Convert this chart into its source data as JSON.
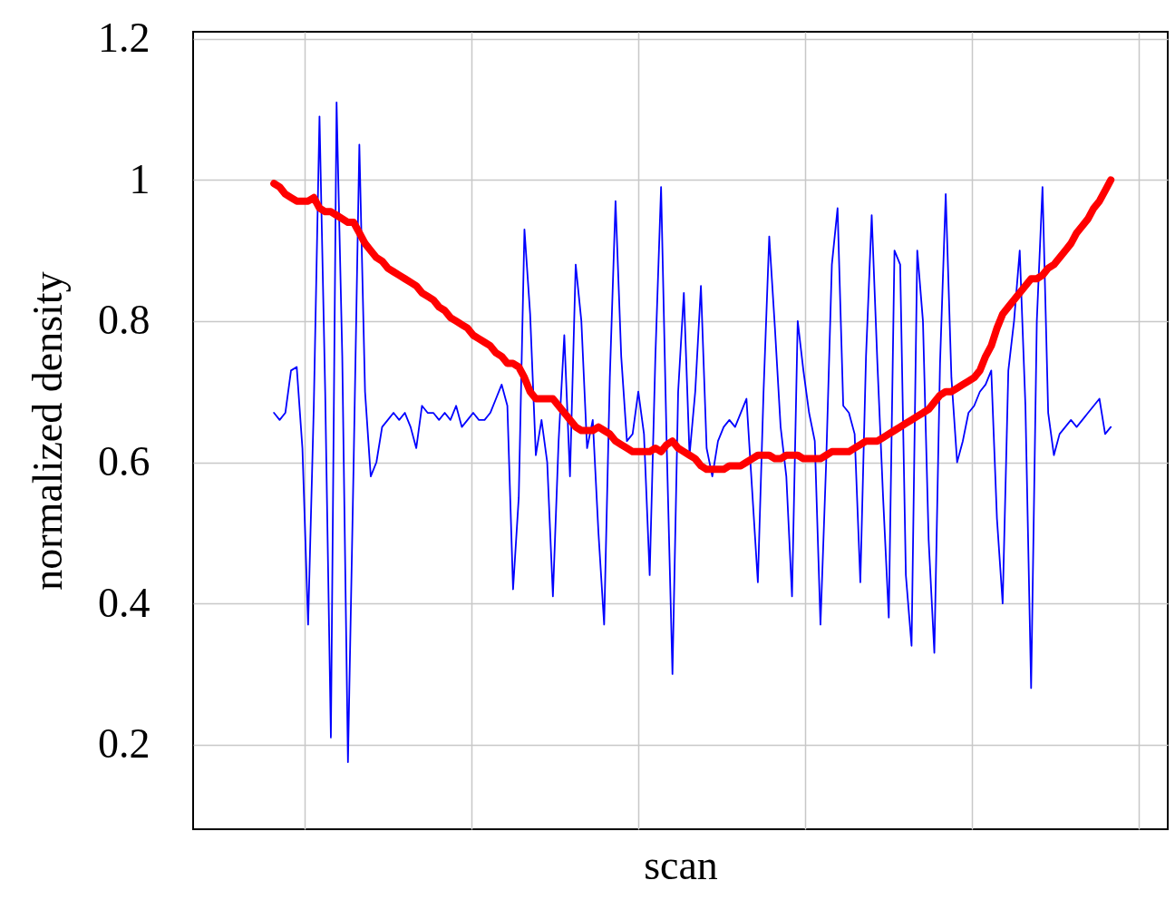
{
  "chart_data": {
    "type": "line",
    "xlabel": "scan",
    "ylabel": "normalized density",
    "categories": [
      null,
      null,
      null,
      null,
      null,
      null,
      null,
      null,
      null,
      null,
      null,
      null,
      null,
      null,
      null,
      null,
      null,
      null,
      null,
      null,
      null,
      null,
      null,
      null,
      null,
      null,
      null,
      null,
      null,
      null,
      null,
      null,
      null,
      null,
      null,
      null,
      null,
      null,
      null,
      null,
      null,
      null,
      null,
      null,
      null,
      null,
      null,
      null,
      null,
      null,
      null,
      null,
      null,
      null,
      null,
      null,
      null,
      null,
      null,
      null,
      null,
      null,
      null,
      null,
      null,
      null,
      null,
      null,
      null,
      null,
      null,
      null,
      null,
      null,
      null,
      null,
      null,
      null,
      null,
      null,
      null,
      null,
      null,
      null,
      null,
      null,
      null,
      null,
      null,
      null,
      null,
      null,
      null,
      null,
      null,
      null,
      null,
      null,
      null,
      null,
      null,
      null,
      null,
      null,
      null,
      null,
      null,
      null,
      null,
      null,
      null,
      null,
      null,
      null,
      null,
      null,
      null,
      null,
      null,
      null,
      null,
      null,
      null,
      null,
      null,
      null,
      null,
      null,
      null,
      null,
      null,
      null,
      null,
      null,
      null,
      null,
      null,
      null,
      null,
      null,
      null,
      null,
      null,
      null,
      null,
      null,
      null,
      null
    ],
    "series": [
      {
        "color": "#0000ff",
        "values": [
          0.67,
          0.66,
          0.67,
          0.73,
          0.735,
          0.62,
          0.37,
          0.68,
          1.09,
          0.7,
          0.21,
          1.11,
          0.75,
          0.175,
          0.6,
          1.05,
          0.7,
          0.58,
          0.6,
          0.65,
          0.66,
          0.67,
          0.66,
          0.67,
          0.65,
          0.62,
          0.68,
          0.67,
          0.67,
          0.66,
          0.67,
          0.66,
          0.68,
          0.65,
          0.66,
          0.67,
          0.66,
          0.66,
          0.67,
          0.69,
          0.71,
          0.68,
          0.42,
          0.55,
          0.93,
          0.81,
          0.61,
          0.66,
          0.6,
          0.41,
          0.63,
          0.78,
          0.58,
          0.88,
          0.8,
          0.62,
          0.66,
          0.5,
          0.37,
          0.72,
          0.97,
          0.75,
          0.63,
          0.64,
          0.7,
          0.64,
          0.44,
          0.75,
          0.99,
          0.62,
          0.3,
          0.7,
          0.84,
          0.61,
          0.7,
          0.85,
          0.62,
          0.58,
          0.63,
          0.65,
          0.66,
          0.65,
          0.67,
          0.69,
          0.56,
          0.43,
          0.7,
          0.92,
          0.79,
          0.65,
          0.58,
          0.41,
          0.8,
          0.73,
          0.67,
          0.63,
          0.37,
          0.6,
          0.88,
          0.96,
          0.68,
          0.67,
          0.64,
          0.43,
          0.75,
          0.95,
          0.74,
          0.55,
          0.38,
          0.9,
          0.88,
          0.44,
          0.34,
          0.9,
          0.8,
          0.49,
          0.33,
          0.74,
          0.98,
          0.72,
          0.6,
          0.63,
          0.67,
          0.68,
          0.7,
          0.71,
          0.73,
          0.52,
          0.4,
          0.73,
          0.8,
          0.9,
          0.68,
          0.28,
          0.8,
          0.99,
          0.67,
          0.61,
          0.64,
          0.65,
          0.66,
          0.65,
          0.66,
          0.67,
          0.68,
          0.69,
          0.64,
          0.65
        ]
      },
      {
        "color": "#ff0000",
        "values": [
          0.995,
          0.99,
          0.98,
          0.975,
          0.97,
          0.97,
          0.97,
          0.975,
          0.96,
          0.955,
          0.955,
          0.95,
          0.945,
          0.94,
          0.94,
          0.925,
          0.91,
          0.9,
          0.89,
          0.885,
          0.875,
          0.87,
          0.865,
          0.86,
          0.855,
          0.85,
          0.84,
          0.835,
          0.83,
          0.82,
          0.815,
          0.805,
          0.8,
          0.795,
          0.79,
          0.78,
          0.775,
          0.77,
          0.765,
          0.755,
          0.75,
          0.74,
          0.74,
          0.735,
          0.72,
          0.7,
          0.69,
          0.69,
          0.69,
          0.69,
          0.68,
          0.67,
          0.66,
          0.65,
          0.645,
          0.645,
          0.645,
          0.65,
          0.645,
          0.64,
          0.63,
          0.625,
          0.62,
          0.615,
          0.615,
          0.615,
          0.615,
          0.62,
          0.615,
          0.625,
          0.63,
          0.62,
          0.615,
          0.61,
          0.605,
          0.595,
          0.59,
          0.59,
          0.59,
          0.59,
          0.595,
          0.595,
          0.595,
          0.6,
          0.605,
          0.61,
          0.61,
          0.61,
          0.605,
          0.605,
          0.61,
          0.61,
          0.61,
          0.605,
          0.605,
          0.605,
          0.605,
          0.61,
          0.615,
          0.615,
          0.615,
          0.615,
          0.62,
          0.625,
          0.63,
          0.63,
          0.63,
          0.635,
          0.64,
          0.645,
          0.65,
          0.655,
          0.66,
          0.665,
          0.67,
          0.675,
          0.685,
          0.695,
          0.7,
          0.7,
          0.705,
          0.71,
          0.715,
          0.72,
          0.73,
          0.75,
          0.765,
          0.79,
          0.81,
          0.82,
          0.83,
          0.84,
          0.85,
          0.86,
          0.86,
          0.865,
          0.875,
          0.88,
          0.89,
          0.9,
          0.91,
          0.925,
          0.935,
          0.945,
          0.96,
          0.97,
          0.985,
          1.0
        ]
      }
    ],
    "ylim": [
      0.08,
      1.21
    ],
    "yticks": [
      0.2,
      0.4,
      0.6,
      0.8,
      1,
      1.2
    ],
    "grid": true,
    "tick_labels": "y",
    "marker": "none",
    "line_style": "solid"
  }
}
